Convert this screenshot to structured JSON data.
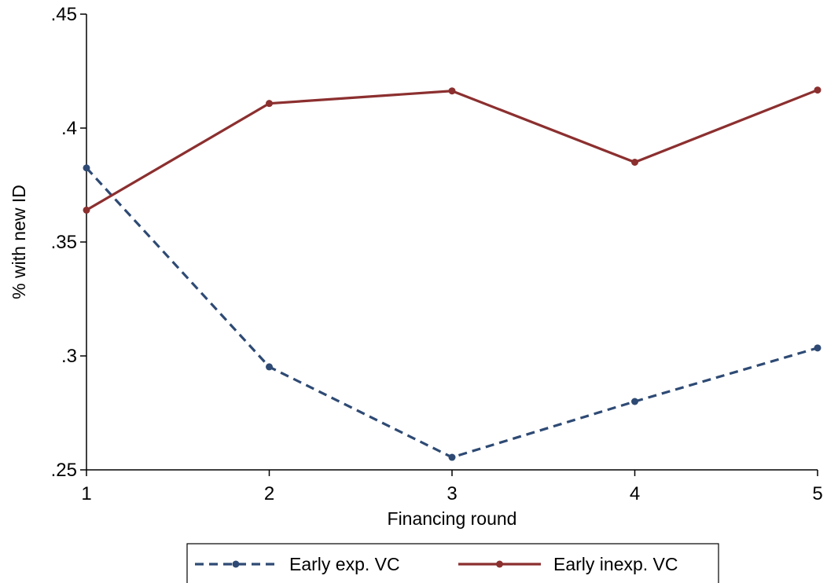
{
  "chart_data": {
    "type": "line",
    "title": "",
    "xlabel": "Financing round",
    "ylabel": "% with new ID",
    "x": [
      1,
      2,
      3,
      4,
      5
    ],
    "xticks": [
      "1",
      "2",
      "3",
      "4",
      "5"
    ],
    "xlim": [
      1,
      5
    ],
    "ylim": [
      0.25,
      0.45
    ],
    "yticks": [
      {
        "value": 0.25,
        "label": ".25"
      },
      {
        "value": 0.3,
        "label": ".3"
      },
      {
        "value": 0.35,
        "label": ".35"
      },
      {
        "value": 0.4,
        "label": ".4"
      },
      {
        "value": 0.45,
        "label": ".45"
      }
    ],
    "grid": false,
    "legend_position": "bottom",
    "series": [
      {
        "name": "Early exp. VC",
        "values": [
          0.3825,
          0.2952,
          0.2555,
          0.28,
          0.3035
        ],
        "color": "#2e4a74",
        "style": "dashed",
        "marker": "circle"
      },
      {
        "name": "Early inexp. VC",
        "values": [
          0.364,
          0.4108,
          0.4163,
          0.385,
          0.4167
        ],
        "color": "#8c2f2f",
        "style": "solid",
        "marker": "circle"
      }
    ]
  }
}
